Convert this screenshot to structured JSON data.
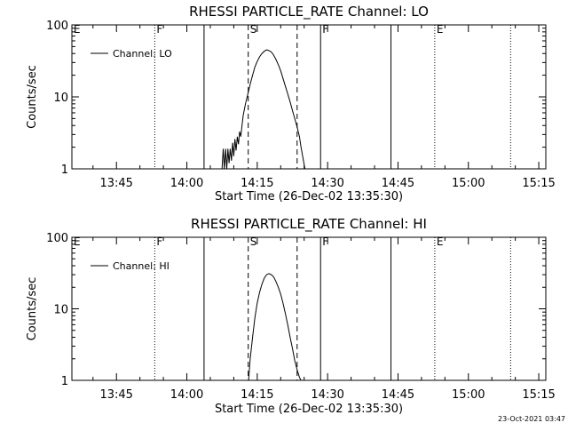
{
  "stamp": "23-Oct-2021 03:47",
  "chart_data": [
    {
      "type": "line",
      "title": "RHESSI PARTICLE_RATE Channel: LO",
      "xlabel": "Start Time (26-Dec-02 13:35:30)",
      "ylabel": "Counts/sec",
      "y_scale": "log",
      "ylim": [
        1,
        100
      ],
      "y_ticks": [
        {
          "v": 1,
          "label": "1"
        },
        {
          "v": 10,
          "label": "10"
        },
        {
          "v": 100,
          "label": "100"
        }
      ],
      "xlim": [
        "13:35:30",
        "15:16:30"
      ],
      "x_ticks": [
        "13:45",
        "14:00",
        "14:15",
        "14:30",
        "14:45",
        "15:00",
        "15:15"
      ],
      "legend": {
        "label": "Channel: LO",
        "position": "top-left"
      },
      "flags": [
        {
          "label": "E",
          "time": "13:35:30",
          "style": "none"
        },
        {
          "label": "F",
          "time": "13:53:10",
          "style": "dotted"
        },
        {
          "label": "",
          "time": "14:03:40",
          "style": "solid"
        },
        {
          "label": "S",
          "time": "14:13:05",
          "style": "dashed"
        },
        {
          "label": "",
          "time": "14:23:30",
          "style": "dashed"
        },
        {
          "label": "F",
          "time": "14:28:30",
          "style": "solid"
        },
        {
          "label": "",
          "time": "14:43:30",
          "style": "solid"
        },
        {
          "label": "E",
          "time": "14:52:50",
          "style": "dotted"
        },
        {
          "label": "",
          "time": "15:09:00",
          "style": "dotted"
        }
      ],
      "series": [
        {
          "name": "Channel: LO",
          "x": [
            "14:07:30",
            "14:07:45",
            "14:08:00",
            "14:08:15",
            "14:08:30",
            "14:08:45",
            "14:09:00",
            "14:09:15",
            "14:09:30",
            "14:09:45",
            "14:10:00",
            "14:10:15",
            "14:10:30",
            "14:10:45",
            "14:11:00",
            "14:11:15",
            "14:11:30",
            "14:11:45",
            "14:12:00",
            "14:12:30",
            "14:13:00",
            "14:13:30",
            "14:14:00",
            "14:14:30",
            "14:15:00",
            "14:15:30",
            "14:16:00",
            "14:16:30",
            "14:17:00",
            "14:17:30",
            "14:18:00",
            "14:18:30",
            "14:19:00",
            "14:19:30",
            "14:20:00",
            "14:20:30",
            "14:21:00",
            "14:21:30",
            "14:22:00",
            "14:22:30",
            "14:23:00",
            "14:23:30",
            "14:24:00",
            "14:24:20",
            "14:24:40",
            "14:25:00",
            "14:25:10"
          ],
          "y": [
            1.0,
            1.9,
            1.0,
            1.9,
            1.0,
            1.9,
            1.2,
            1.9,
            1.3,
            2.3,
            1.5,
            2.6,
            1.8,
            2.8,
            2.2,
            3.3,
            2.8,
            4.0,
            5.5,
            8.0,
            11,
            15,
            20,
            26,
            31,
            36,
            40,
            43,
            45,
            44,
            42,
            38,
            33,
            28,
            23,
            18,
            14,
            11,
            8.5,
            6.5,
            5.0,
            3.8,
            2.8,
            2.0,
            1.5,
            1.15,
            1.0
          ]
        }
      ]
    },
    {
      "type": "line",
      "title": "RHESSI PARTICLE_RATE Channel: HI",
      "xlabel": "Start Time (26-Dec-02 13:35:30)",
      "ylabel": "Counts/sec",
      "y_scale": "log",
      "ylim": [
        1,
        100
      ],
      "y_ticks": [
        {
          "v": 1,
          "label": "1"
        },
        {
          "v": 10,
          "label": "10"
        },
        {
          "v": 100,
          "label": "100"
        }
      ],
      "xlim": [
        "13:35:30",
        "15:16:30"
      ],
      "x_ticks": [
        "13:45",
        "14:00",
        "14:15",
        "14:30",
        "14:45",
        "15:00",
        "15:15"
      ],
      "legend": {
        "label": "Channel: HI",
        "position": "top-left"
      },
      "flags": [
        {
          "label": "E",
          "time": "13:35:30",
          "style": "none"
        },
        {
          "label": "F",
          "time": "13:53:10",
          "style": "dotted"
        },
        {
          "label": "",
          "time": "14:03:40",
          "style": "solid"
        },
        {
          "label": "S",
          "time": "14:13:05",
          "style": "dashed"
        },
        {
          "label": "",
          "time": "14:23:30",
          "style": "dashed"
        },
        {
          "label": "F",
          "time": "14:28:30",
          "style": "solid"
        },
        {
          "label": "",
          "time": "14:43:30",
          "style": "solid"
        },
        {
          "label": "E",
          "time": "14:52:50",
          "style": "dotted"
        },
        {
          "label": "",
          "time": "15:09:00",
          "style": "dotted"
        }
      ],
      "series": [
        {
          "name": "Channel: HI",
          "x": [
            "14:13:10",
            "14:13:30",
            "14:14:00",
            "14:14:30",
            "14:15:00",
            "14:15:30",
            "14:16:00",
            "14:16:30",
            "14:17:00",
            "14:17:30",
            "14:18:00",
            "14:18:30",
            "14:19:00",
            "14:19:30",
            "14:20:00",
            "14:20:30",
            "14:21:00",
            "14:21:30",
            "14:22:00",
            "14:22:30",
            "14:23:00",
            "14:23:30",
            "14:24:00",
            "14:24:20",
            "14:24:30"
          ],
          "y": [
            1.0,
            2.0,
            4.0,
            7.5,
            12,
            17,
            22,
            27,
            30,
            31,
            30,
            28,
            24,
            20,
            16,
            12,
            8.5,
            6.0,
            4.0,
            2.8,
            1.9,
            1.4,
            1.1,
            1.0,
            1.0
          ]
        }
      ]
    }
  ]
}
